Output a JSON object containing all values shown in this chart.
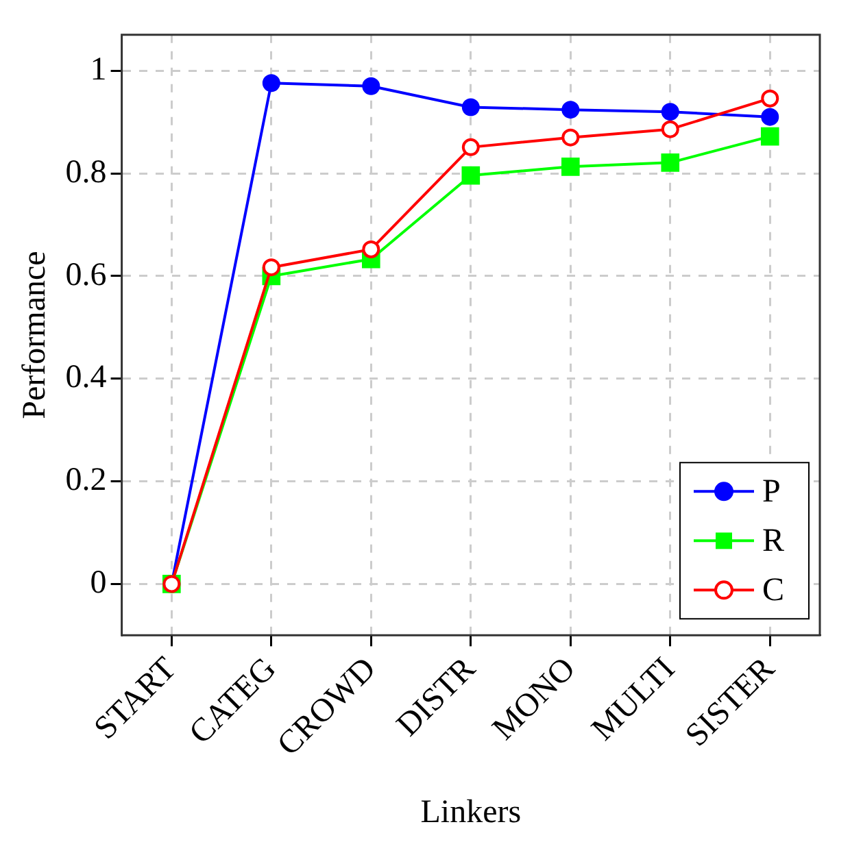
{
  "chart_data": {
    "type": "line",
    "xlabel": "Linkers",
    "ylabel": "Performance",
    "categories": [
      "START",
      "CATEG",
      "CROWD",
      "DISTR",
      "MONO",
      "MULTI",
      "SISTER"
    ],
    "series": [
      {
        "name": "P",
        "color": "#0000ff",
        "marker": "circle",
        "values": [
          0,
          0.976,
          0.97,
          0.929,
          0.924,
          0.92,
          0.91
        ]
      },
      {
        "name": "R",
        "color": "#00ff00",
        "marker": "square",
        "values": [
          0,
          0.6,
          0.633,
          0.796,
          0.813,
          0.821,
          0.872
        ]
      },
      {
        "name": "C",
        "color": "#ff0000",
        "marker": "circle",
        "values": [
          0,
          0.617,
          0.652,
          0.851,
          0.87,
          0.886,
          0.946
        ]
      }
    ],
    "ylim": [
      -0.1,
      1.07
    ],
    "yticks": [
      0,
      0.2,
      0.4,
      0.6,
      0.8,
      1
    ],
    "grid": true,
    "legend": "bottom right"
  }
}
